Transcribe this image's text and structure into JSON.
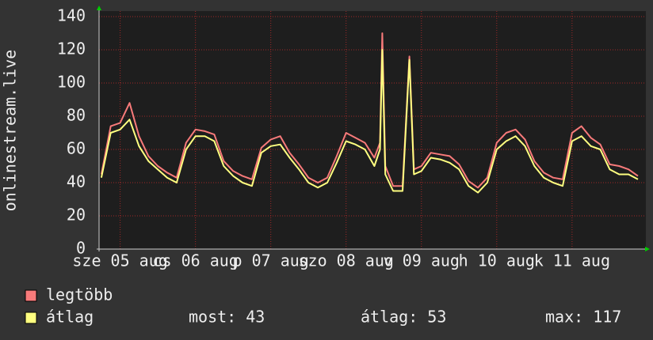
{
  "chart_data": {
    "type": "line",
    "ylabel": "onlinestream.live",
    "x": [
      -0.25,
      -0.125,
      0,
      0.125,
      0.25,
      0.375,
      0.5,
      0.625,
      0.75,
      0.875,
      1,
      1.125,
      1.25,
      1.375,
      1.5,
      1.625,
      1.75,
      1.875,
      2,
      2.125,
      2.25,
      2.375,
      2.5,
      2.625,
      2.75,
      2.875,
      3,
      3.125,
      3.25,
      3.375,
      3.45,
      3.48,
      3.52,
      3.625,
      3.75,
      3.84,
      3.9,
      4,
      4.125,
      4.25,
      4.375,
      4.5,
      4.625,
      4.75,
      4.875,
      5,
      5.125,
      5.25,
      5.375,
      5.5,
      5.625,
      5.75,
      5.875,
      6,
      6.125,
      6.25,
      6.375,
      6.5,
      6.625,
      6.75,
      6.875
    ],
    "series": [
      {
        "name": "legtöbb",
        "color": "#f87a7a",
        "values": [
          45,
          74,
          76,
          88,
          68,
          56,
          50,
          46,
          43,
          64,
          72,
          71,
          69,
          53,
          47,
          44,
          42,
          61,
          66,
          68,
          58,
          51,
          43,
          40,
          43,
          56,
          70,
          67,
          64,
          55,
          64,
          130,
          50,
          38,
          38,
          116,
          48,
          50,
          58,
          57,
          56,
          51,
          41,
          37,
          43,
          64,
          70,
          72,
          66,
          53,
          46,
          43,
          42,
          70,
          74,
          67,
          63,
          51,
          50,
          48,
          44
        ]
      },
      {
        "name": "átlag",
        "color": "#ffff80",
        "values": [
          43,
          70,
          72,
          78,
          62,
          53,
          48,
          43,
          40,
          60,
          68,
          68,
          65,
          50,
          44,
          40,
          38,
          58,
          62,
          63,
          55,
          48,
          40,
          37,
          40,
          52,
          65,
          63,
          60,
          50,
          60,
          120,
          45,
          35,
          35,
          114,
          45,
          47,
          55,
          54,
          52,
          48,
          38,
          34,
          40,
          60,
          65,
          68,
          62,
          50,
          43,
          40,
          38,
          65,
          68,
          62,
          60,
          48,
          45,
          45,
          42
        ]
      }
    ],
    "stats": [
      "most: 43",
      "átlag: 53",
      "max: 117"
    ],
    "xlim": [
      -0.28,
      6.98
    ],
    "xticks": [
      {
        "value": 0,
        "label": "sze 05 aug"
      },
      {
        "value": 1,
        "label": "cs 06 aug"
      },
      {
        "value": 2,
        "label": "p 07 aug"
      },
      {
        "value": 3,
        "label": "szo 08 aug"
      },
      {
        "value": 4,
        "label": "v 09 aug"
      },
      {
        "value": 5,
        "label": "h 10 aug"
      },
      {
        "value": 6,
        "label": "k 11 aug"
      }
    ],
    "ylim": [
      0,
      140
    ],
    "yticks": [
      0,
      20,
      40,
      60,
      80,
      100,
      120,
      140
    ],
    "grid": true
  }
}
